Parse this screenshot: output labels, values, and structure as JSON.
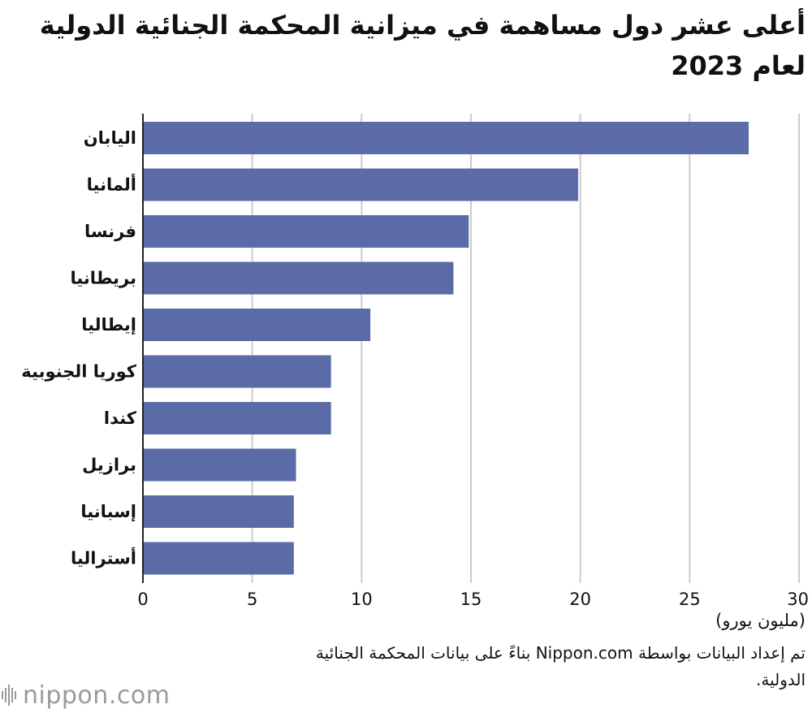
{
  "title": "أعلى عشر دول مساهمة في ميزانية المحكمة الجنائية الدولية لعام 2023",
  "unit_label": "(مليون يورو)",
  "source": "تم إعداد البيانات بواسطة Nippon.com بناءً على بيانات المحكمة الجنائية الدولية.",
  "logo": {
    "name": "nippon",
    "suffix": ".com"
  },
  "colors": {
    "bar": "#5a6ba7",
    "grid": "#cccccc",
    "axis": "#222222"
  },
  "chart_data": {
    "type": "bar",
    "orientation": "horizontal",
    "categories": [
      "اليابان",
      "ألمانيا",
      "فرنسا",
      "بريطانيا",
      "إيطاليا",
      "كوريا الجنوبية",
      "كندا",
      "برازيل",
      "إسبانيا",
      "أستراليا"
    ],
    "values": [
      27.7,
      19.9,
      14.9,
      14.2,
      10.4,
      8.6,
      8.6,
      7.0,
      6.9,
      6.9
    ],
    "xlim": [
      0,
      30
    ],
    "xticks": [
      0,
      5,
      10,
      15,
      20,
      25,
      30
    ],
    "xlabel": "(مليون يورو)",
    "grid": true
  }
}
